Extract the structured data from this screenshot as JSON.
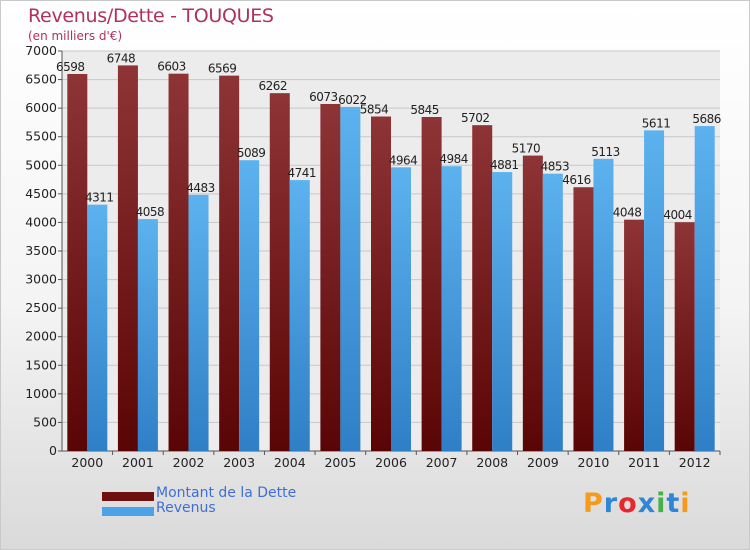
{
  "chart_data": {
    "type": "bar",
    "title": "Revenus/Dette - TOUQUES",
    "subtitle": "(en milliers d'€)",
    "categories": [
      "2000",
      "2001",
      "2002",
      "2003",
      "2004",
      "2005",
      "2006",
      "2007",
      "2008",
      "2009",
      "2010",
      "2011",
      "2012"
    ],
    "series": [
      {
        "name": "Montant de la Dette",
        "color": "#7b1d1d",
        "values": [
          6598,
          6748,
          6603,
          6569,
          6262,
          6073,
          5854,
          5845,
          5702,
          5170,
          4616,
          4048,
          4004
        ]
      },
      {
        "name": "Revenus",
        "color": "#4aa3e6",
        "values": [
          4311,
          4058,
          4483,
          5089,
          4741,
          6022,
          4964,
          4984,
          4881,
          4853,
          5113,
          5611,
          5686
        ]
      }
    ],
    "ylim": [
      0,
      7000
    ],
    "yticks": [
      0,
      500,
      1000,
      1500,
      2000,
      2500,
      3000,
      3500,
      4000,
      4500,
      5000,
      5500,
      6000,
      6500,
      7000
    ],
    "grid": true,
    "legend_position": "bottom-left"
  },
  "logo": {
    "text": "Proxiti",
    "colors": [
      "#f59a1b",
      "#2f86d6",
      "#e8262b",
      "#2f86d6",
      "#46b049",
      "#2f86d6",
      "#f59a1b"
    ]
  }
}
